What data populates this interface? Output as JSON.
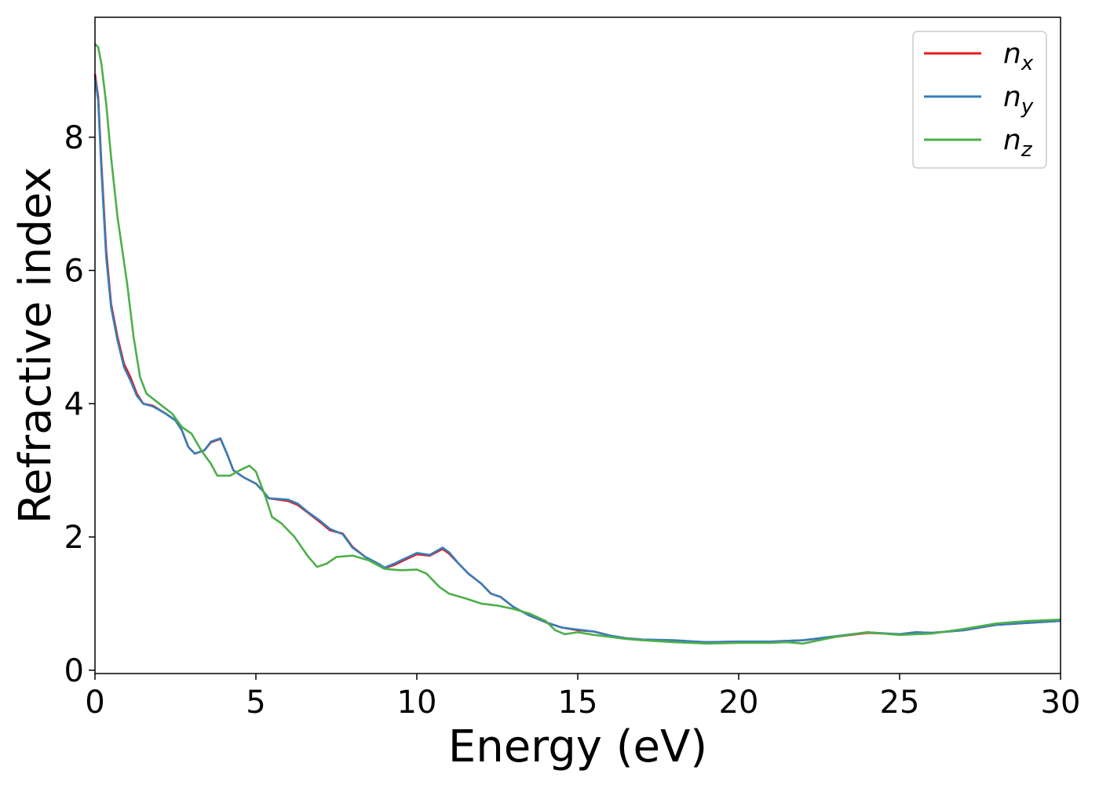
{
  "chart_data": {
    "type": "line",
    "xlabel": "Energy (eV)",
    "ylabel": "Refractive index",
    "xlim": [
      0,
      30
    ],
    "ylim": [
      -0.05,
      9.8
    ],
    "xticks": [
      0,
      5,
      10,
      15,
      20,
      25,
      30
    ],
    "yticks": [
      0,
      2,
      4,
      6,
      8
    ],
    "grid": false,
    "legend_position": "top-right",
    "series": [
      {
        "name": "n_x",
        "legend_base": "n",
        "legend_sub": "x",
        "color": "#e41a1c",
        "points": [
          [
            0,
            8.95
          ],
          [
            0.1,
            8.6
          ],
          [
            0.2,
            7.6
          ],
          [
            0.35,
            6.3
          ],
          [
            0.5,
            5.5
          ],
          [
            0.7,
            5.0
          ],
          [
            0.9,
            4.6
          ],
          [
            1.1,
            4.4
          ],
          [
            1.3,
            4.15
          ],
          [
            1.5,
            4.0
          ],
          [
            1.8,
            3.97
          ],
          [
            2.2,
            3.85
          ],
          [
            2.5,
            3.75
          ],
          [
            2.7,
            3.6
          ],
          [
            2.9,
            3.35
          ],
          [
            3.1,
            3.25
          ],
          [
            3.4,
            3.3
          ],
          [
            3.6,
            3.42
          ],
          [
            3.9,
            3.47
          ],
          [
            4.1,
            3.25
          ],
          [
            4.3,
            3.0
          ],
          [
            4.6,
            2.9
          ],
          [
            5.0,
            2.8
          ],
          [
            5.2,
            2.7
          ],
          [
            5.4,
            2.58
          ],
          [
            5.7,
            2.56
          ],
          [
            6.0,
            2.54
          ],
          [
            6.3,
            2.48
          ],
          [
            6.6,
            2.37
          ],
          [
            7.0,
            2.22
          ],
          [
            7.3,
            2.1
          ],
          [
            7.7,
            2.05
          ],
          [
            8.0,
            1.85
          ],
          [
            8.4,
            1.7
          ],
          [
            8.8,
            1.6
          ],
          [
            9.0,
            1.53
          ],
          [
            9.3,
            1.58
          ],
          [
            9.6,
            1.65
          ],
          [
            10.0,
            1.74
          ],
          [
            10.4,
            1.72
          ],
          [
            10.8,
            1.82
          ],
          [
            11.0,
            1.75
          ],
          [
            11.3,
            1.6
          ],
          [
            11.6,
            1.45
          ],
          [
            12.0,
            1.3
          ],
          [
            12.3,
            1.15
          ],
          [
            12.6,
            1.1
          ],
          [
            13.0,
            0.95
          ],
          [
            13.5,
            0.82
          ],
          [
            14.0,
            0.72
          ],
          [
            14.5,
            0.64
          ],
          [
            15.0,
            0.6
          ],
          [
            15.5,
            0.58
          ],
          [
            16.0,
            0.52
          ],
          [
            16.5,
            0.48
          ],
          [
            17.0,
            0.46
          ],
          [
            18.0,
            0.44
          ],
          [
            19.0,
            0.42
          ],
          [
            20.0,
            0.43
          ],
          [
            21.0,
            0.43
          ],
          [
            22.0,
            0.45
          ],
          [
            23.0,
            0.5
          ],
          [
            24.0,
            0.56
          ],
          [
            25.0,
            0.54
          ],
          [
            25.5,
            0.57
          ],
          [
            26.0,
            0.56
          ],
          [
            27.0,
            0.6
          ],
          [
            28.0,
            0.68
          ],
          [
            29.0,
            0.71
          ],
          [
            30.0,
            0.74
          ]
        ]
      },
      {
        "name": "n_y",
        "legend_base": "n",
        "legend_sub": "y",
        "color": "#377eb8",
        "points": [
          [
            0,
            8.9
          ],
          [
            0.1,
            8.55
          ],
          [
            0.2,
            7.5
          ],
          [
            0.35,
            6.2
          ],
          [
            0.5,
            5.45
          ],
          [
            0.7,
            4.95
          ],
          [
            0.9,
            4.55
          ],
          [
            1.1,
            4.35
          ],
          [
            1.3,
            4.12
          ],
          [
            1.5,
            4.0
          ],
          [
            1.8,
            3.96
          ],
          [
            2.2,
            3.85
          ],
          [
            2.5,
            3.75
          ],
          [
            2.7,
            3.6
          ],
          [
            2.9,
            3.35
          ],
          [
            3.1,
            3.25
          ],
          [
            3.4,
            3.3
          ],
          [
            3.6,
            3.43
          ],
          [
            3.9,
            3.48
          ],
          [
            4.1,
            3.25
          ],
          [
            4.3,
            3.0
          ],
          [
            4.6,
            2.9
          ],
          [
            5.0,
            2.8
          ],
          [
            5.2,
            2.7
          ],
          [
            5.4,
            2.58
          ],
          [
            5.7,
            2.57
          ],
          [
            6.0,
            2.56
          ],
          [
            6.3,
            2.5
          ],
          [
            6.6,
            2.38
          ],
          [
            7.0,
            2.24
          ],
          [
            7.3,
            2.12
          ],
          [
            7.7,
            2.04
          ],
          [
            8.0,
            1.84
          ],
          [
            8.4,
            1.7
          ],
          [
            8.8,
            1.6
          ],
          [
            9.0,
            1.54
          ],
          [
            9.3,
            1.6
          ],
          [
            9.6,
            1.67
          ],
          [
            10.0,
            1.76
          ],
          [
            10.4,
            1.73
          ],
          [
            10.8,
            1.84
          ],
          [
            11.0,
            1.77
          ],
          [
            11.3,
            1.6
          ],
          [
            11.6,
            1.45
          ],
          [
            12.0,
            1.3
          ],
          [
            12.3,
            1.15
          ],
          [
            12.6,
            1.1
          ],
          [
            13.0,
            0.95
          ],
          [
            13.5,
            0.82
          ],
          [
            14.0,
            0.72
          ],
          [
            14.5,
            0.64
          ],
          [
            15.0,
            0.61
          ],
          [
            15.5,
            0.58
          ],
          [
            16.0,
            0.52
          ],
          [
            16.5,
            0.48
          ],
          [
            17.0,
            0.46
          ],
          [
            18.0,
            0.45
          ],
          [
            19.0,
            0.42
          ],
          [
            20.0,
            0.43
          ],
          [
            21.0,
            0.43
          ],
          [
            22.0,
            0.45
          ],
          [
            23.0,
            0.51
          ],
          [
            24.0,
            0.57
          ],
          [
            25.0,
            0.54
          ],
          [
            25.5,
            0.57
          ],
          [
            26.0,
            0.56
          ],
          [
            27.0,
            0.6
          ],
          [
            28.0,
            0.68
          ],
          [
            29.0,
            0.71
          ],
          [
            30.0,
            0.74
          ]
        ]
      },
      {
        "name": "n_z",
        "legend_base": "n",
        "legend_sub": "z",
        "color": "#4daf4a",
        "points": [
          [
            0,
            9.4
          ],
          [
            0.1,
            9.35
          ],
          [
            0.2,
            9.1
          ],
          [
            0.35,
            8.5
          ],
          [
            0.5,
            7.7
          ],
          [
            0.7,
            6.8
          ],
          [
            1.0,
            5.8
          ],
          [
            1.2,
            5.0
          ],
          [
            1.4,
            4.4
          ],
          [
            1.6,
            4.15
          ],
          [
            2.0,
            4.0
          ],
          [
            2.4,
            3.85
          ],
          [
            2.7,
            3.65
          ],
          [
            3.0,
            3.55
          ],
          [
            3.3,
            3.3
          ],
          [
            3.6,
            3.1
          ],
          [
            3.8,
            2.92
          ],
          [
            4.2,
            2.92
          ],
          [
            4.5,
            3.0
          ],
          [
            4.8,
            3.07
          ],
          [
            5.0,
            2.98
          ],
          [
            5.3,
            2.6
          ],
          [
            5.5,
            2.3
          ],
          [
            5.8,
            2.2
          ],
          [
            6.2,
            2.0
          ],
          [
            6.6,
            1.72
          ],
          [
            6.9,
            1.55
          ],
          [
            7.2,
            1.6
          ],
          [
            7.5,
            1.7
          ],
          [
            8.0,
            1.72
          ],
          [
            8.5,
            1.65
          ],
          [
            9.0,
            1.52
          ],
          [
            9.5,
            1.5
          ],
          [
            10.0,
            1.51
          ],
          [
            10.3,
            1.45
          ],
          [
            10.7,
            1.25
          ],
          [
            11.0,
            1.15
          ],
          [
            11.5,
            1.08
          ],
          [
            12.0,
            1.0
          ],
          [
            12.5,
            0.97
          ],
          [
            13.0,
            0.92
          ],
          [
            13.5,
            0.85
          ],
          [
            14.0,
            0.74
          ],
          [
            14.3,
            0.6
          ],
          [
            14.6,
            0.54
          ],
          [
            15.0,
            0.57
          ],
          [
            15.5,
            0.53
          ],
          [
            16.0,
            0.5
          ],
          [
            16.5,
            0.47
          ],
          [
            17.0,
            0.45
          ],
          [
            18.0,
            0.42
          ],
          [
            19.0,
            0.4
          ],
          [
            20.0,
            0.41
          ],
          [
            21.0,
            0.41
          ],
          [
            21.5,
            0.42
          ],
          [
            22.0,
            0.4
          ],
          [
            22.5,
            0.45
          ],
          [
            23.0,
            0.5
          ],
          [
            24.0,
            0.57
          ],
          [
            25.0,
            0.53
          ],
          [
            26.0,
            0.55
          ],
          [
            27.0,
            0.62
          ],
          [
            28.0,
            0.7
          ],
          [
            29.0,
            0.74
          ],
          [
            30.0,
            0.76
          ]
        ]
      }
    ]
  }
}
